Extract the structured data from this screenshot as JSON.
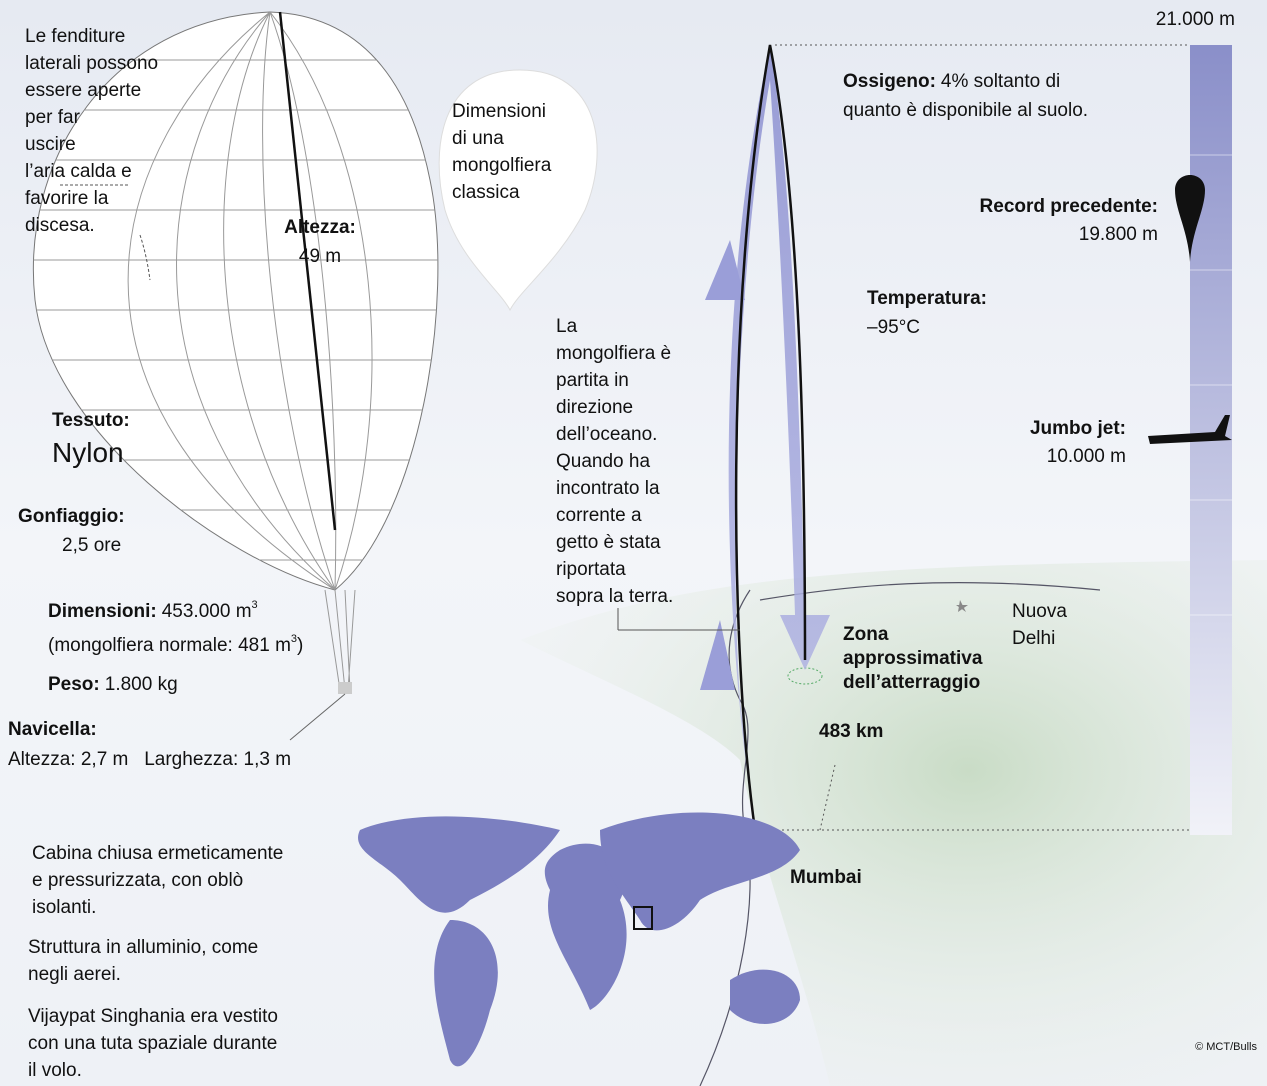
{
  "scale": {
    "top_altitude": "21.000 m"
  },
  "balloon": {
    "slit_note": [
      "Le fenditure",
      "laterali possono",
      "essere aperte",
      "per far",
      "uscire",
      "l’aria calda e",
      "favorire la",
      "discesa."
    ],
    "classic_label": [
      "Dimensioni",
      "di una",
      "mongolfiera",
      "classica"
    ],
    "height": {
      "label": "Altezza:",
      "value": "49 m"
    },
    "fabric": {
      "label": "Tessuto:",
      "value": "Nylon"
    },
    "inflation": {
      "label": "Gonfiaggio:",
      "value": "2,5 ore"
    },
    "volume": {
      "label": "Dimensioni:",
      "value": "453.000 m",
      "exponent": "3",
      "normal": "(mongolfiera normale: 481 m",
      "normal_exponent": "3",
      "normal_close": ")"
    },
    "weight": {
      "label": "Peso:",
      "value": "1.800 kg"
    },
    "gondola": {
      "label": "Navicella:",
      "value": "Altezza: 2,7 m   Larghezza: 1,3 m"
    }
  },
  "flight": {
    "oxygen": {
      "label": "Ossigeno:",
      "lines": [
        "4% soltanto di",
        "quanto è disponibile al suolo."
      ]
    },
    "record": {
      "label": "Record precedente:",
      "value": "19.800 m"
    },
    "temperature": {
      "label": "Temperatura:",
      "value": "–95°C"
    },
    "jumbo": {
      "label": "Jumbo jet:",
      "value": "10.000 m"
    },
    "route_note": [
      "La",
      "mongolfiera è",
      "partita in",
      "direzione",
      "dell’oceano.",
      "Quando ha",
      "incontrato la",
      "corrente a",
      "getto è stata",
      "riportata",
      "sopra la terra."
    ],
    "landing": [
      "Zona",
      "approssimativa",
      "dell’atterraggio"
    ],
    "city": [
      "Nuova",
      "Delhi"
    ],
    "distance": "483 km",
    "start": "Mumbai"
  },
  "cabin_notes": [
    [
      "Cabina chiusa ermeticamente",
      "e pressurizzata, con oblò",
      "isolanti."
    ],
    [
      "Struttura in alluminio, come",
      "negli aerei."
    ],
    [
      "Vijaypat Singhania era vestito",
      "con una tuta spaziale durante",
      "il volo."
    ]
  ],
  "credit": "© MCT/Bulls"
}
